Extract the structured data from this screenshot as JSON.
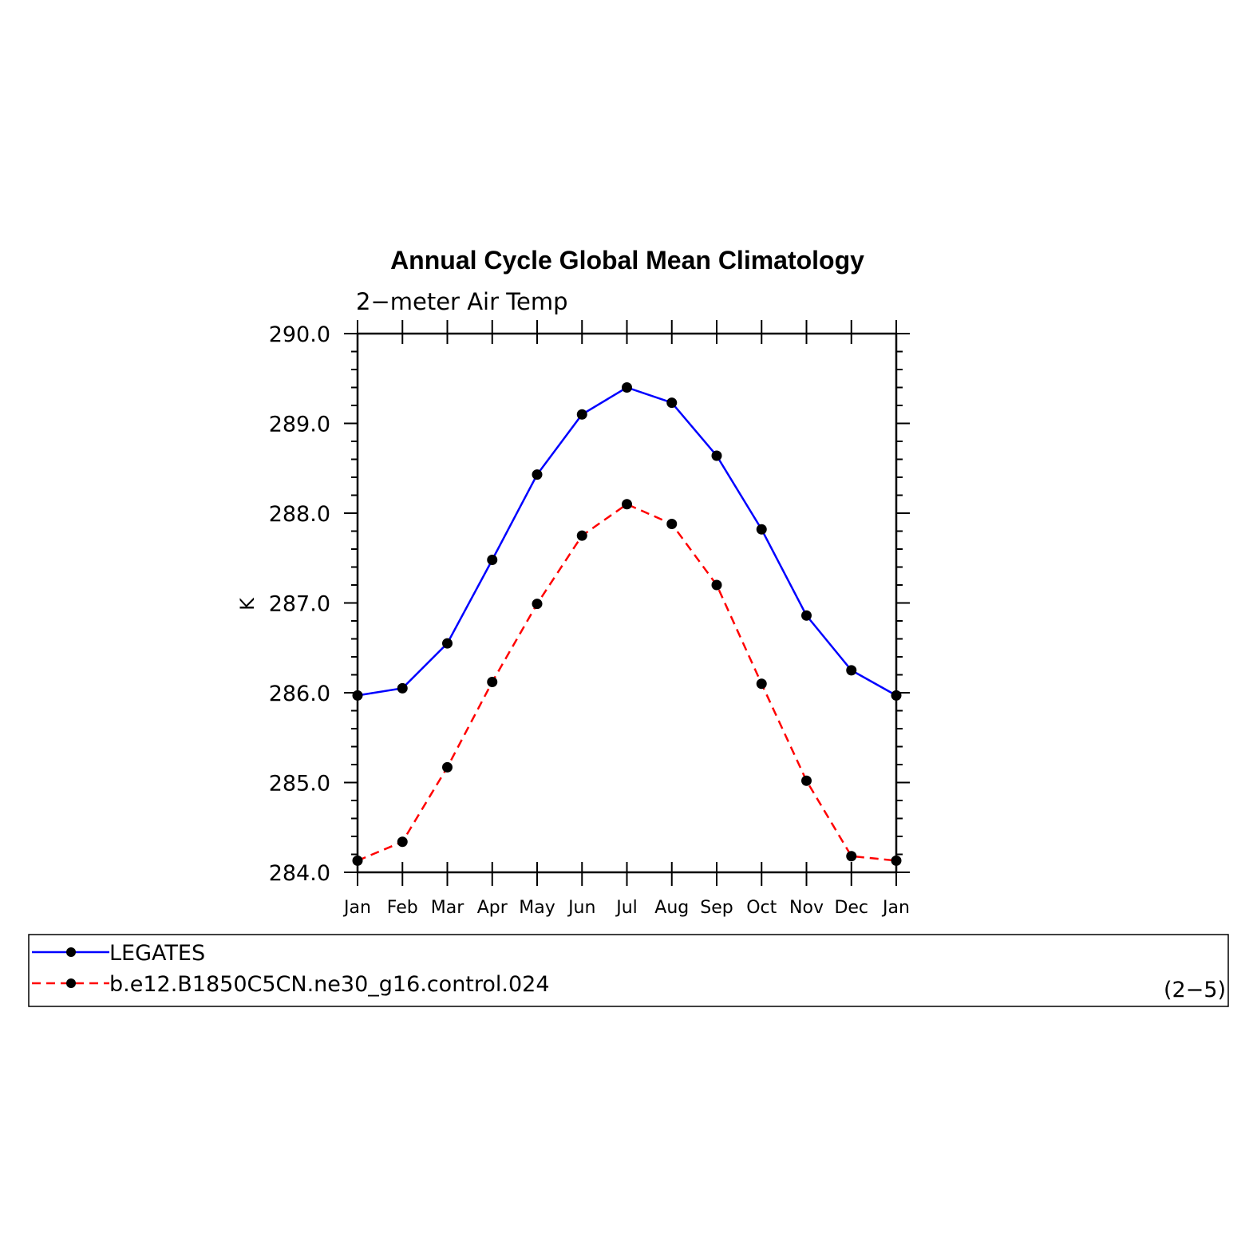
{
  "chart_data": {
    "type": "line",
    "title": "Annual Cycle Global Mean Climatology",
    "subtitle": "2−meter Air Temp",
    "ylabel": "K",
    "xlabel": "",
    "categories": [
      "Jan",
      "Feb",
      "Mar",
      "Apr",
      "May",
      "Jun",
      "Jul",
      "Aug",
      "Sep",
      "Oct",
      "Nov",
      "Dec",
      "Jan"
    ],
    "ylim": [
      284.0,
      290.0
    ],
    "yticks": [
      "290.0",
      "289.0",
      "288.0",
      "287.0",
      "286.0",
      "285.0",
      "284.0"
    ],
    "grid": false,
    "legend_position": "bottom",
    "series": [
      {
        "name": "LEGATES",
        "color": "#0000ff",
        "dash": "solid",
        "values": [
          285.97,
          286.05,
          286.55,
          287.48,
          288.43,
          289.1,
          289.4,
          289.23,
          288.64,
          287.82,
          286.86,
          286.25,
          285.97
        ]
      },
      {
        "name": "b.e12.B1850C5CN.ne30_g16.control.024",
        "color": "#ff0000",
        "dash": "dashed",
        "values": [
          284.13,
          284.34,
          285.17,
          286.12,
          286.99,
          287.75,
          288.1,
          287.88,
          287.2,
          286.1,
          285.02,
          284.18,
          284.13
        ]
      }
    ],
    "panel_label": "(2−5)"
  }
}
